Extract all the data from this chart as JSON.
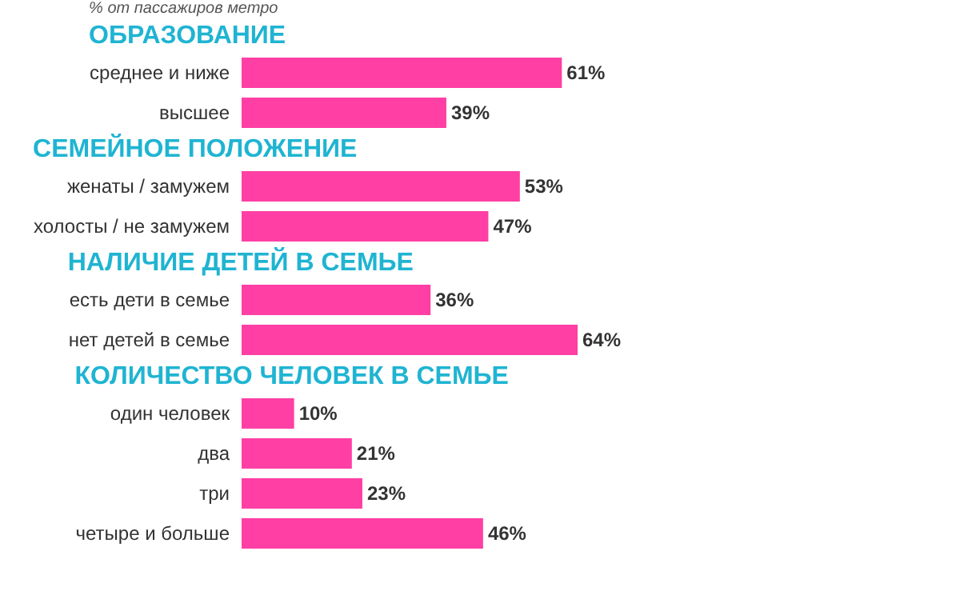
{
  "chart_data": [
    {
      "type": "bar",
      "orientation": "horizontal",
      "subtitle": "% от пассажиров метро",
      "title": "ОБРАЗОВАНИЕ",
      "categories": [
        "среднее и ниже",
        "высшее"
      ],
      "values": [
        61,
        39
      ],
      "value_labels": [
        "61%",
        "39%"
      ],
      "color": "#ff3fa4"
    },
    {
      "type": "bar",
      "orientation": "horizontal",
      "title": "СЕМЕЙНОЕ ПОЛОЖЕНИЕ",
      "categories": [
        "женаты / замужем",
        "холосты / не замужем"
      ],
      "values": [
        53,
        47
      ],
      "value_labels": [
        "53%",
        "47%"
      ],
      "color": "#ff3fa4"
    },
    {
      "type": "bar",
      "orientation": "horizontal",
      "title": "НАЛИЧИЕ ДЕТЕЙ В СЕМЬЕ",
      "categories": [
        "есть дети в семье",
        "нет детей в семье"
      ],
      "values": [
        36,
        64
      ],
      "value_labels": [
        "36%",
        "64%"
      ],
      "color": "#ff3fa4"
    },
    {
      "type": "bar",
      "orientation": "horizontal",
      "title": "КОЛИЧЕСТВО ЧЕЛОВЕК В СЕМЬЕ",
      "categories": [
        "один человек",
        "два",
        "три",
        "четыре и больше"
      ],
      "values": [
        10,
        21,
        23,
        46
      ],
      "value_labels": [
        "10%",
        "21%",
        "23%",
        "46%"
      ],
      "color": "#ff3fa4"
    }
  ]
}
